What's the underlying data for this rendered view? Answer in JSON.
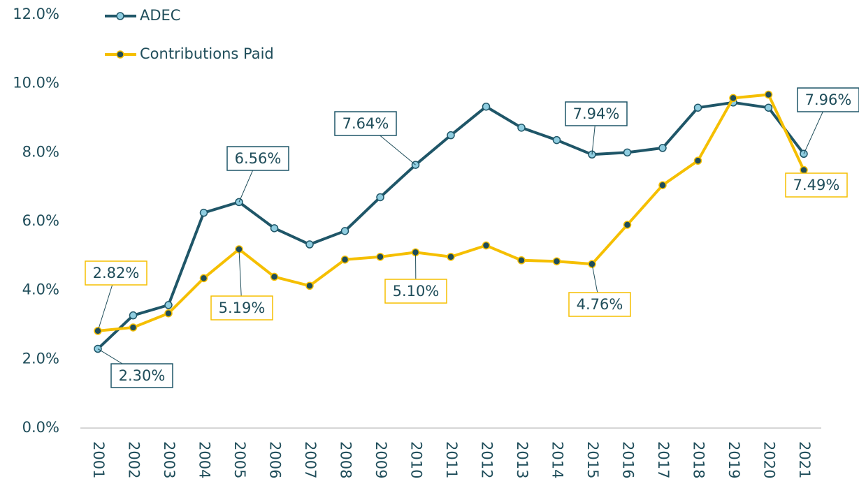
{
  "chart_data": {
    "type": "line",
    "categories": [
      "2001",
      "2002",
      "2003",
      "2004",
      "2005",
      "2006",
      "2007",
      "2008",
      "2009",
      "2010",
      "2011",
      "2012",
      "2013",
      "2014",
      "2015",
      "2016",
      "2017",
      "2018",
      "2019",
      "2020",
      "2021"
    ],
    "series": [
      {
        "name": "ADEC",
        "color": "#1f5668",
        "marker_color": "#8fcde0",
        "values": [
          2.3,
          3.27,
          3.57,
          6.25,
          6.56,
          5.8,
          5.33,
          5.72,
          6.7,
          7.64,
          8.5,
          9.33,
          8.72,
          8.36,
          7.94,
          8.0,
          8.13,
          9.3,
          9.45,
          9.3,
          7.96
        ],
        "value_labels": [
          "2.30%",
          null,
          null,
          null,
          "6.56%",
          null,
          null,
          null,
          null,
          "7.64%",
          null,
          null,
          null,
          null,
          "7.94%",
          null,
          null,
          null,
          null,
          null,
          "7.96%"
        ]
      },
      {
        "name": "Contributions Paid",
        "color": "#f5bf00",
        "marker_color": "#1f4d5a",
        "values": [
          2.82,
          2.92,
          3.33,
          4.35,
          5.19,
          4.39,
          4.13,
          4.89,
          4.97,
          5.1,
          4.97,
          5.3,
          4.87,
          4.84,
          4.76,
          5.9,
          7.05,
          7.76,
          9.58,
          9.68,
          7.49
        ],
        "value_labels": [
          "2.82%",
          null,
          null,
          null,
          "5.19%",
          null,
          null,
          null,
          null,
          "5.10%",
          null,
          null,
          null,
          null,
          "4.76%",
          null,
          null,
          null,
          null,
          null,
          "7.49%"
        ]
      }
    ],
    "ylim": [
      0,
      12
    ],
    "yticks": [
      {
        "value": 0,
        "label": "0.0%"
      },
      {
        "value": 2,
        "label": "2.0%"
      },
      {
        "value": 4,
        "label": "4.0%"
      },
      {
        "value": 6,
        "label": "6.0%"
      },
      {
        "value": 8,
        "label": "8.0%"
      },
      {
        "value": 10,
        "label": "10.0%"
      },
      {
        "value": 12,
        "label": "12.0%"
      }
    ],
    "grid": false
  }
}
